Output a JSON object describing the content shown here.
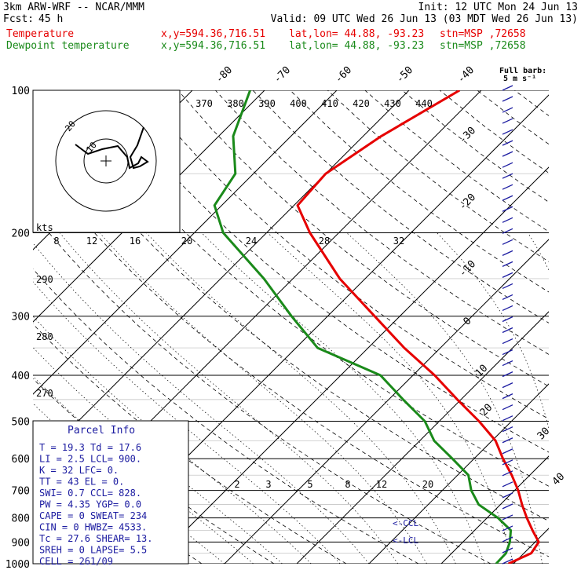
{
  "header": {
    "model": "3km ARW-WRF -- NCAR/MMM",
    "init": "Init: 12 UTC Mon 24 Jun 13",
    "fcst_label": "Fcst:",
    "fcst_value": "45 h",
    "valid": "Valid: 09 UTC Wed 26 Jun 13 (03 MDT Wed 26 Jun 13)"
  },
  "legend": [
    {
      "label": "Temperature",
      "coords": "x,y=594.36,716.51",
      "latlon": "lat,lon= 44.88, -93.23",
      "station": "stn=MSP ,72658",
      "color": "#e60000"
    },
    {
      "label": "Dewpoint temperature",
      "coords": "x,y=594.36,716.51",
      "latlon": "lat,lon= 44.88, -93.23",
      "station": "stn=MSP ,72658",
      "color": "#1a8a1a"
    }
  ],
  "full_barb": {
    "line1": "Full barb:",
    "line2": "5 m s⁻¹"
  },
  "hodograph": {
    "units": "kts",
    "ring_labels": [
      "10",
      "20"
    ]
  },
  "parcel_info": {
    "title": "Parcel Info",
    "rows": [
      "T  =   19.3 Td =  17.6",
      "LI =    2.5 LCL=  900.",
      "K  =     32 LFC=    0.",
      "TT =     43 EL =    0.",
      "SWI=    0.7 CCL=  828.",
      "PW =   4.35 YGP=   0.0",
      "CAPE =    0 SWEAT=  234",
      "CIN =     0 HWBZ= 4533.",
      "Tc =   27.6 SHEAR=  13.",
      "SREH =    0 LAPSE=  5.5",
      "CELL = 261/09"
    ]
  },
  "chart_data": {
    "type": "line",
    "chart_kind": "skew-T log-p",
    "pressure_ticks": [
      "100",
      "200",
      "300",
      "400",
      "500",
      "600",
      "700",
      "800",
      "900",
      "1000"
    ],
    "pressure_levels": [
      100,
      200,
      300,
      400,
      500,
      600,
      700,
      800,
      900,
      1000
    ],
    "ylim": [
      1000,
      100
    ],
    "isotherm_labels": [
      "-80",
      "-70",
      "-60",
      "-50",
      "-40",
      "-30",
      "-20",
      "-10",
      "0",
      "10",
      "20",
      "30",
      "40"
    ],
    "theta_labels": [
      "370",
      "380",
      "390",
      "400",
      "410",
      "420",
      "430",
      "440"
    ],
    "mixing_ratio_labels_top": [
      "8",
      "12",
      "16",
      "20",
      "24",
      "28",
      "32"
    ],
    "mixing_ratio_labels_bottom": [
      "2",
      "3",
      "5",
      "8",
      "12",
      "20"
    ],
    "side_theta_labels": [
      "290",
      "280",
      "270"
    ],
    "annotations": [
      "<-CCL",
      "<-LCL"
    ],
    "series": [
      {
        "name": "Temperature",
        "color": "#e60000",
        "unit": "°C",
        "p": [
          1000,
          950,
          900,
          850,
          800,
          750,
          700,
          650,
          600,
          550,
          500,
          450,
          400,
          350,
          300,
          250,
          200,
          175,
          150,
          125,
          100
        ],
        "t": [
          19.3,
          21.0,
          20.5,
          18.0,
          15.5,
          13.0,
          10.5,
          7.5,
          4.0,
          0.5,
          -4.5,
          -10.5,
          -17.0,
          -25.0,
          -33.5,
          -43.5,
          -54.0,
          -59.5,
          -60.0,
          -57.5,
          -53.0
        ]
      },
      {
        "name": "Dewpoint temperature",
        "color": "#1a8a1a",
        "unit": "°C",
        "p": [
          1000,
          950,
          900,
          850,
          800,
          750,
          700,
          650,
          600,
          550,
          500,
          450,
          400,
          350,
          300,
          250,
          200,
          175,
          150,
          125,
          100
        ],
        "t": [
          17.6,
          17.5,
          16.5,
          15.0,
          11.5,
          7.0,
          4.0,
          1.5,
          -3.0,
          -8.0,
          -12.0,
          -18.0,
          -24.5,
          -37.0,
          -45.0,
          -54.0,
          -66.0,
          -71.0,
          -72.5,
          -78.0,
          -82.0
        ]
      }
    ],
    "wind_barbs": {
      "count": 44,
      "pressure_range": [
        1000,
        100
      ]
    }
  }
}
